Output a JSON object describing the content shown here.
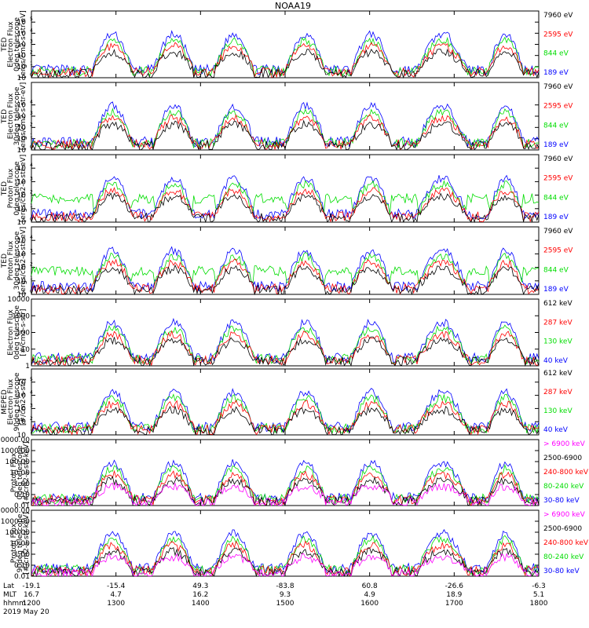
{
  "title": "NOAA19",
  "chart_data": {
    "type": "line",
    "x_axis": {
      "rows": [
        {
          "label": "Lat",
          "values": [
            "-19.1",
            "-15.4",
            "49.3",
            "-83.8",
            "60.8",
            "-26.6",
            "-6.3"
          ]
        },
        {
          "label": "MLT",
          "values": [
            "16.7",
            "4.7",
            "16.2",
            "9.3",
            "4.9",
            "18.9",
            "5.1"
          ]
        },
        {
          "label": "hhmm",
          "values": [
            "1200",
            "1300",
            "1400",
            "1500",
            "1600",
            "1700",
            "1800"
          ]
        }
      ],
      "date": "2019 May 20",
      "range": [
        1200,
        1800
      ]
    },
    "panels": [
      {
        "ylabel": [
          "TED",
          "Electron Flux",
          "0deg telescope",
          "[ergs/cm2-s-str-eV]"
        ],
        "scale": "log",
        "ylim": [
          1,
          1000000
        ],
        "yticks": [
          {
            "e": 0,
            "t": "10"
          },
          {
            "e": 1,
            "t": "10"
          },
          {
            "e": 2,
            "t": "10"
          },
          {
            "e": 3,
            "t": "10"
          },
          {
            "e": 4,
            "t": "10"
          },
          {
            "e": 5,
            "t": "10"
          }
        ],
        "series": [
          {
            "name": "7960 eV",
            "color": "#000000"
          },
          {
            "name": "2595 eV",
            "color": "#ff0000"
          },
          {
            "name": "844 eV",
            "color": "#00dd00"
          },
          {
            "name": "189 eV",
            "color": "#0000ff"
          }
        ]
      },
      {
        "ylabel": [
          "TED",
          "Electron Flux",
          "30deg telescope",
          "[ergs/cm2-s-str-eV]"
        ],
        "scale": "log",
        "ylim": [
          1,
          1000000
        ],
        "yticks": [
          {
            "e": 0,
            "t": "10"
          },
          {
            "e": 1,
            "t": "10"
          },
          {
            "e": 2,
            "t": "10"
          },
          {
            "e": 3,
            "t": "10"
          },
          {
            "e": 4,
            "t": "10"
          }
        ],
        "series": [
          {
            "name": "7960 eV",
            "color": "#000000"
          },
          {
            "name": "2595 eV",
            "color": "#ff0000"
          },
          {
            "name": "844 eV",
            "color": "#00dd00"
          },
          {
            "name": "189 eV",
            "color": "#0000ff"
          }
        ]
      },
      {
        "ylabel": [
          "TED",
          "Proton Flux",
          "0deg telescope",
          "[ergs/cm2-s-str-eV]"
        ],
        "scale": "log",
        "ylim": [
          1,
          100000
        ],
        "yticks": [
          {
            "e": 0,
            "t": "10"
          },
          {
            "e": 1,
            "t": "10"
          },
          {
            "e": 2,
            "t": "10"
          },
          {
            "e": 3,
            "t": "10"
          },
          {
            "e": 4,
            "t": "10"
          }
        ],
        "series": [
          {
            "name": "7960 eV",
            "color": "#000000"
          },
          {
            "name": "2595 eV",
            "color": "#ff0000"
          },
          {
            "name": "844 eV",
            "color": "#00dd00"
          },
          {
            "name": "189 eV",
            "color": "#0000ff"
          }
        ]
      },
      {
        "ylabel": [
          "TED",
          "Proton Flux",
          "30deg telescope",
          "[ergs/cm2-s-str-eV]"
        ],
        "scale": "log",
        "ylim": [
          1,
          100000
        ],
        "yticks": [
          {
            "e": 0,
            "t": "10"
          },
          {
            "e": 1,
            "t": "10"
          },
          {
            "e": 2,
            "t": "10"
          },
          {
            "e": 3,
            "t": "10"
          },
          {
            "e": 4,
            "t": "10"
          }
        ],
        "series": [
          {
            "name": "7960 eV",
            "color": "#000000"
          },
          {
            "name": "2595 eV",
            "color": "#ff0000"
          },
          {
            "name": "844 eV",
            "color": "#00dd00"
          },
          {
            "name": "189 eV",
            "color": "#0000ff"
          }
        ]
      },
      {
        "ylabel": [
          "Electron Flux",
          "0deg telescope",
          "[#/cm2-s-str]"
        ],
        "scale": "log",
        "ylim": [
          1,
          10000
        ],
        "yticks": [
          {
            "v": 1,
            "t": "1"
          },
          {
            "v": 10,
            "t": "10"
          },
          {
            "v": 100,
            "t": "100"
          },
          {
            "v": 1000,
            "t": "1000"
          },
          {
            "v": 10000,
            "t": "10000"
          }
        ],
        "series": [
          {
            "name": "612 keV",
            "color": "#000000"
          },
          {
            "name": "287 keV",
            "color": "#ff0000"
          },
          {
            "name": "130 keV",
            "color": "#00dd00"
          },
          {
            "name": "40 keV",
            "color": "#0000ff"
          }
        ]
      },
      {
        "ylabel": [
          "MEPED",
          "Electron Flux",
          "90deg telescope",
          "[#/cm2-s-str]"
        ],
        "scale": "log",
        "ylim": [
          10,
          1000000
        ],
        "yticks": [
          {
            "e": 1,
            "t": "10"
          },
          {
            "e": 2,
            "t": "10"
          },
          {
            "e": 3,
            "t": "10"
          },
          {
            "e": 4,
            "t": "10"
          },
          {
            "e": 5,
            "t": "10"
          }
        ],
        "series": [
          {
            "name": "612 keV",
            "color": "#000000"
          },
          {
            "name": "287 keV",
            "color": "#ff0000"
          },
          {
            "name": "130 keV",
            "color": "#00dd00"
          },
          {
            "name": "40 keV",
            "color": "#0000ff"
          }
        ]
      },
      {
        "ylabel": [
          "Proton Flux",
          "0deg telescope",
          "[#/cm2-s-str-keV]"
        ],
        "scale": "log",
        "ylim": [
          0.01,
          10000
        ],
        "yticks": [
          {
            "v": 0.01,
            "t": "0.01"
          },
          {
            "v": 0.1,
            "t": "0.10"
          },
          {
            "v": 1,
            "t": "1.00"
          },
          {
            "v": 10,
            "t": "10.00"
          },
          {
            "v": 100,
            "t": "100.00"
          },
          {
            "v": 1000,
            "t": "1000.00"
          },
          {
            "v": 10000,
            "t": "10000.00"
          }
        ],
        "series": [
          {
            "name": "> 6900 keV",
            "color": "#ff00ff"
          },
          {
            "name": "2500-6900",
            "color": "#000000"
          },
          {
            "name": "240-800 keV",
            "color": "#ff0000"
          },
          {
            "name": "80-240 keV",
            "color": "#00dd00"
          },
          {
            "name": "30-80 keV",
            "color": "#0000ff"
          }
        ]
      },
      {
        "ylabel": [
          "Proton Flux",
          "90deg telescope",
          "[#/cm2-s-str-keV]"
        ],
        "scale": "log",
        "ylim": [
          0.01,
          10000
        ],
        "yticks": [
          {
            "v": 0.01,
            "t": "0.01"
          },
          {
            "v": 0.1,
            "t": "0.10"
          },
          {
            "v": 1,
            "t": "1.00"
          },
          {
            "v": 10,
            "t": "10.00"
          },
          {
            "v": 100,
            "t": "100.00"
          },
          {
            "v": 1000,
            "t": "1000.00"
          },
          {
            "v": 10000,
            "t": "10000.00"
          }
        ],
        "series": [
          {
            "name": "> 6900 keV",
            "color": "#ff00ff"
          },
          {
            "name": "2500-6900",
            "color": "#000000"
          },
          {
            "name": "240-800 keV",
            "color": "#ff0000"
          },
          {
            "name": "80-240 keV",
            "color": "#00dd00"
          },
          {
            "name": "30-80 keV",
            "color": "#0000ff"
          }
        ]
      }
    ]
  }
}
